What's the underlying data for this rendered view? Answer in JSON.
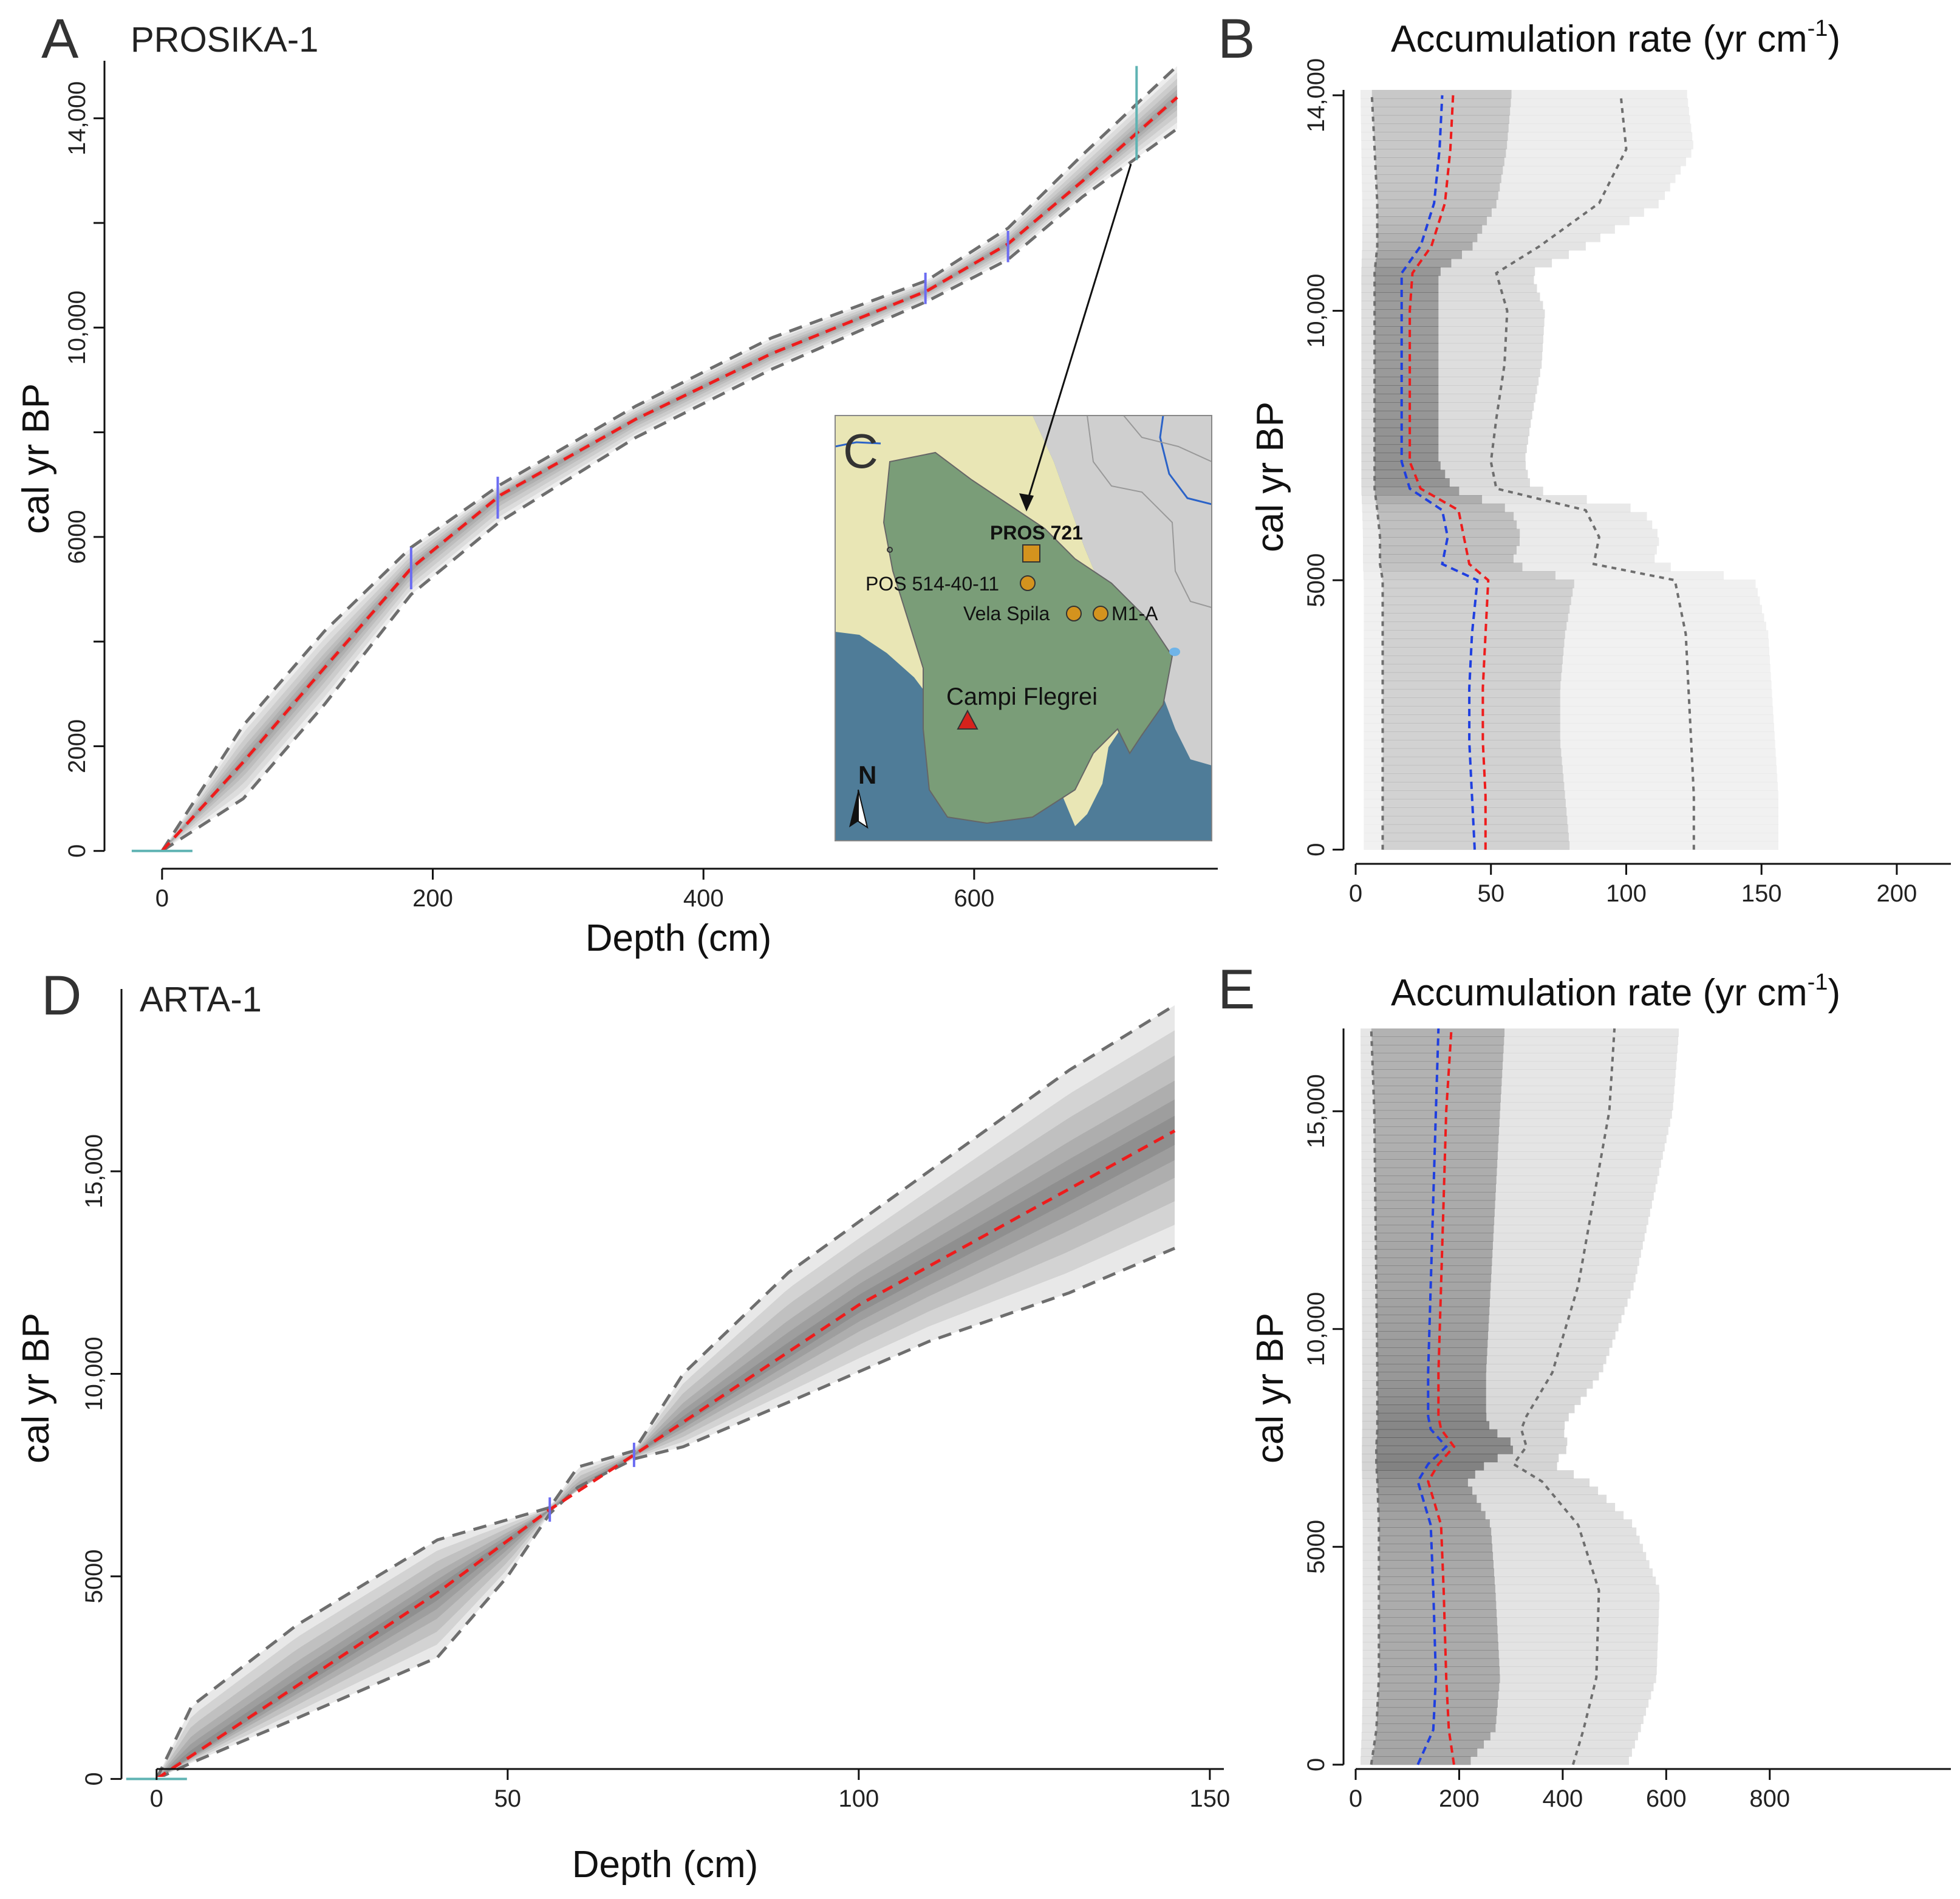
{
  "chart_data": [
    {
      "id": "A",
      "type": "line",
      "panel_letter": "A",
      "core": "PROSIKA-1",
      "xlabel": "Depth (cm)",
      "ylabel": "cal yr BP",
      "xlim": [
        -30,
        780
      ],
      "ylim": [
        -50,
        15100
      ],
      "xticks": [
        0,
        200,
        400,
        600
      ],
      "xtick_labels": [
        "0",
        "200",
        "400",
        "600"
      ],
      "yticks": [
        0,
        2000,
        6000,
        10000,
        14000
      ],
      "ytick_labels": [
        "0",
        "2000",
        "6000",
        "10,000",
        "14,000"
      ],
      "yticks_minor": [
        4000,
        8000,
        12000
      ],
      "series": [
        {
          "name": "median",
          "style": "red-dashed",
          "x": [
            0,
            60,
            120,
            184,
            250,
            350,
            450,
            565,
            625,
            680,
            750
          ],
          "y": [
            0,
            1700,
            3500,
            5400,
            6800,
            8250,
            9500,
            10700,
            11600,
            12800,
            14400
          ]
        },
        {
          "name": "upper 95%",
          "style": "grey-dashed",
          "x": [
            0,
            60,
            120,
            184,
            250,
            350,
            450,
            565,
            625,
            680,
            750
          ],
          "y": [
            0,
            2400,
            4200,
            5800,
            7000,
            8500,
            9800,
            10900,
            11900,
            13300,
            15000
          ]
        },
        {
          "name": "lower 95%",
          "style": "grey-dashed",
          "x": [
            0,
            60,
            120,
            184,
            250,
            350,
            450,
            565,
            625,
            680,
            750
          ],
          "y": [
            0,
            1000,
            2800,
            4900,
            6300,
            7900,
            9200,
            10500,
            11300,
            12500,
            13800
          ]
        }
      ],
      "dates": [
        {
          "depth": 184,
          "age": 5400,
          "err": 400
        },
        {
          "depth": 248,
          "age": 6750,
          "err": 400
        },
        {
          "depth": 564,
          "age": 10750,
          "err": 300
        },
        {
          "depth": 625,
          "age": 11550,
          "err": 300
        },
        {
          "depth": 720,
          "age": 14100,
          "err": 900
        }
      ],
      "surface": {
        "depth": 0,
        "age": 0
      }
    },
    {
      "id": "B",
      "type": "heatmap",
      "panel_letter": "B",
      "title": "Accumulation rate (yr cm",
      "title_sup": "-1",
      "title_close": ")",
      "ylabel": "cal yr BP",
      "xlim": [
        0,
        220
      ],
      "ylim": [
        -50,
        14100
      ],
      "xticks": [
        0,
        50,
        100,
        150,
        200
      ],
      "xtick_labels": [
        "0",
        "50",
        "100",
        "150",
        "200"
      ],
      "yticks": [
        0,
        5000,
        10000,
        14000
      ],
      "ytick_labels": [
        "0",
        "5000",
        "10,000",
        "14,000"
      ],
      "series": [
        {
          "name": "mean",
          "style": "red-dashed",
          "y": [
            0,
            1000,
            2000,
            3000,
            4000,
            5000,
            5300,
            5800,
            6300,
            6700,
            7200,
            8000,
            9000,
            10000,
            10700,
            11200,
            12000,
            13000,
            14000
          ],
          "x": [
            48,
            48,
            47,
            47,
            48,
            49,
            42,
            40,
            38,
            24,
            20,
            20,
            20,
            20,
            21,
            28,
            33,
            35,
            36
          ]
        },
        {
          "name": "median",
          "style": "blue-dashed",
          "y": [
            0,
            1000,
            2000,
            3000,
            4000,
            5000,
            5300,
            5800,
            6300,
            6700,
            7200,
            8000,
            9000,
            10000,
            10700,
            11200,
            12000,
            13000,
            14000
          ],
          "x": [
            44,
            43,
            42,
            42,
            43,
            45,
            32,
            34,
            32,
            20,
            17,
            17,
            17,
            17,
            17,
            24,
            29,
            31,
            32
          ]
        },
        {
          "name": "upper 95%",
          "style": "grey-dotted",
          "y": [
            0,
            1000,
            2000,
            3000,
            4000,
            5000,
            5300,
            5800,
            6300,
            6700,
            7200,
            8000,
            9000,
            10000,
            10700,
            11200,
            12000,
            13000,
            14000
          ],
          "x": [
            125,
            125,
            124,
            123,
            122,
            118,
            88,
            90,
            85,
            52,
            50,
            52,
            55,
            56,
            52,
            68,
            90,
            100,
            98
          ]
        },
        {
          "name": "lower 95%",
          "style": "grey-dotted",
          "y": [
            0,
            1000,
            2000,
            3000,
            4000,
            5000,
            5300,
            5800,
            6300,
            6700,
            7200,
            8000,
            9000,
            10000,
            10700,
            11200,
            12000,
            13000,
            14000
          ],
          "x": [
            10,
            10,
            10,
            10,
            10,
            10,
            9,
            9,
            8,
            7,
            7,
            7,
            7,
            7,
            7,
            8,
            8,
            7,
            6
          ]
        }
      ]
    },
    {
      "id": "D",
      "type": "line",
      "panel_letter": "D",
      "core": "ARTA-1",
      "xlabel": "Depth (cm)",
      "ylabel": "cal yr BP",
      "xlim": [
        -5,
        152
      ],
      "ylim": [
        -100,
        19500
      ],
      "xticks": [
        0,
        50,
        100,
        150
      ],
      "xtick_labels": [
        "0",
        "50",
        "100",
        "150"
      ],
      "yticks": [
        0,
        5000,
        10000,
        15000
      ],
      "ytick_labels": [
        "0",
        "5000",
        "10,000",
        "15,000"
      ],
      "series": [
        {
          "name": "median",
          "style": "red-dashed",
          "x": [
            0,
            20,
            40,
            56,
            68,
            100,
            145
          ],
          "y": [
            0,
            2300,
            4600,
            6650,
            8000,
            11700,
            16000
          ]
        },
        {
          "name": "upper 95%",
          "style": "grey-dashed",
          "x": [
            0,
            5,
            20,
            40,
            50,
            56,
            60,
            68,
            75,
            90,
            110,
            130,
            145
          ],
          "y": [
            0,
            1800,
            3800,
            5900,
            6400,
            6700,
            7700,
            8100,
            10000,
            12500,
            15000,
            17500,
            19100
          ]
        },
        {
          "name": "lower 95%",
          "style": "grey-dashed",
          "x": [
            0,
            5,
            20,
            40,
            50,
            56,
            60,
            68,
            75,
            90,
            110,
            130,
            145
          ],
          "y": [
            0,
            400,
            1500,
            3000,
            5000,
            6550,
            7200,
            7900,
            8200,
            9300,
            10800,
            12000,
            13100
          ]
        }
      ],
      "dates": [
        {
          "depth": 56,
          "age": 6650,
          "err": 300
        },
        {
          "depth": 68,
          "age": 8000,
          "err": 300
        }
      ],
      "surface": {
        "depth": 0,
        "age": 0
      }
    },
    {
      "id": "E",
      "type": "heatmap",
      "panel_letter": "E",
      "title": "Accumulation rate (yr cm",
      "title_sup": "-1",
      "title_close": ")",
      "ylabel": "cal yr BP",
      "xlim": [
        0,
        1150
      ],
      "ylim": [
        -100,
        16900
      ],
      "xticks": [
        0,
        200,
        400,
        600,
        800
      ],
      "xtick_labels": [
        "0",
        "200",
        "400",
        "600",
        "800"
      ],
      "yticks": [
        0,
        5000,
        10000,
        15000
      ],
      "ytick_labels": [
        "0",
        "5000",
        "10,000",
        "15,000"
      ],
      "series": [
        {
          "name": "mean",
          "style": "red-dashed",
          "y": [
            0,
            800,
            2000,
            4000,
            5500,
            6500,
            6900,
            7300,
            7700,
            8000,
            9000,
            11000,
            13000,
            15000,
            16900
          ],
          "x": [
            190,
            180,
            175,
            170,
            165,
            140,
            160,
            190,
            165,
            160,
            160,
            165,
            170,
            175,
            185
          ]
        },
        {
          "name": "median",
          "style": "blue-dashed",
          "y": [
            0,
            800,
            2000,
            4000,
            5500,
            6500,
            6900,
            7300,
            7700,
            8000,
            9000,
            11000,
            13000,
            15000,
            16900
          ],
          "x": [
            120,
            150,
            155,
            150,
            145,
            120,
            140,
            175,
            145,
            140,
            140,
            145,
            150,
            155,
            160
          ]
        },
        {
          "name": "upper 95%",
          "style": "grey-dotted",
          "y": [
            0,
            800,
            2000,
            4000,
            5500,
            6500,
            6900,
            7300,
            7700,
            8000,
            9000,
            11000,
            13000,
            15000,
            16900
          ],
          "x": [
            420,
            440,
            465,
            470,
            430,
            360,
            305,
            330,
            320,
            330,
            380,
            430,
            460,
            490,
            500
          ]
        },
        {
          "name": "lower 95%",
          "style": "grey-dotted",
          "y": [
            0,
            800,
            2000,
            4000,
            5500,
            6500,
            6900,
            7300,
            7700,
            8000,
            9000,
            11000,
            13000,
            15000,
            16900
          ],
          "x": [
            30,
            40,
            45,
            45,
            45,
            42,
            40,
            40,
            42,
            42,
            42,
            40,
            38,
            36,
            30
          ]
        }
      ]
    }
  ],
  "inset_map": {
    "panel_letter": "C",
    "labels": {
      "pros": "PROS 721",
      "pos": "POS 514-40-11",
      "vela": "Vela Spila",
      "m1a": "M1-A",
      "campi": "Campi Flegrei",
      "north": "N"
    },
    "colors": {
      "sea": "#4f7c98",
      "land": "#e9e6b5",
      "land_other": "#cfcfcf",
      "tephra": "#7a9d78",
      "core_symbol": "#d4931e",
      "volcano": "#d6221c",
      "pros_text": "#e32c23",
      "river": "#2b63c8"
    }
  },
  "colors": {
    "median": "#ee1c1c",
    "mean_blue": "#1f3fe0",
    "range": "#6e6e6e",
    "date_marker": "#6b6cf2",
    "surface_marker": "#5fb3b3"
  }
}
